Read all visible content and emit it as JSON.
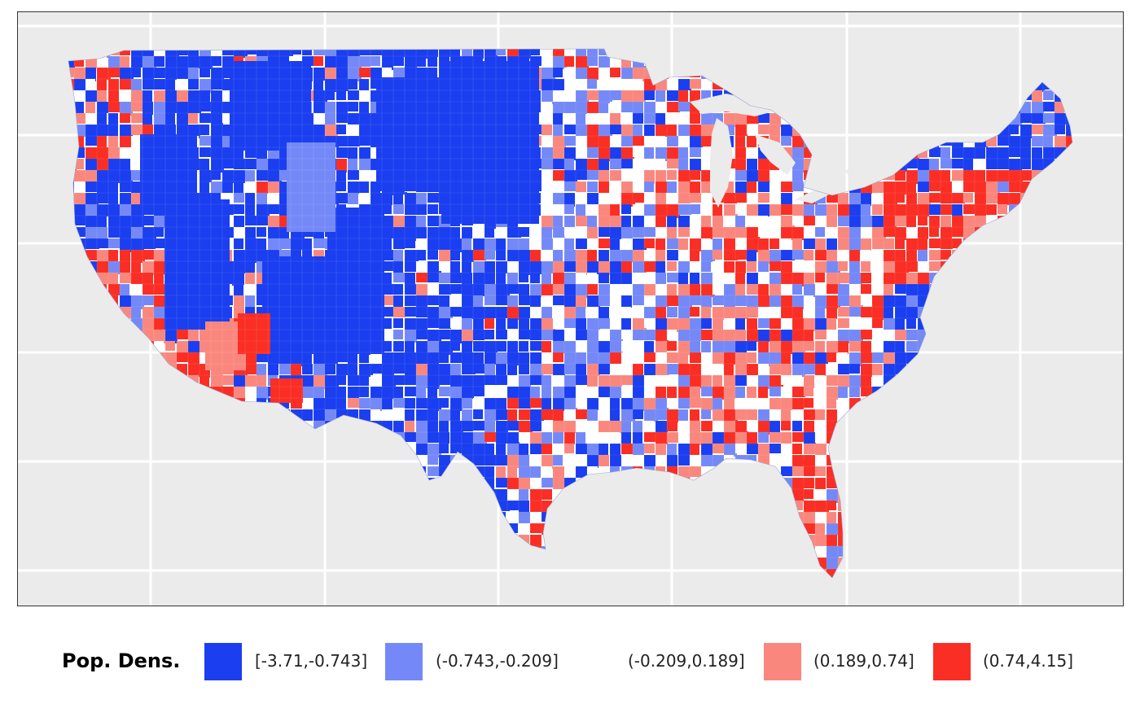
{
  "legend": {
    "title": "Pop. Dens.",
    "items": [
      {
        "label": "[-3.71,-0.743]",
        "color": "#1a3ef0"
      },
      {
        "label": "(-0.743,-0.209]",
        "color": "#7489f7"
      },
      {
        "label": "(-0.209,0.189]",
        "color": "#ffffff"
      },
      {
        "label": "(0.189,0.74]",
        "color": "#fa877e"
      },
      {
        "label": "(0.74,4.15]",
        "color": "#fa2e24"
      }
    ]
  },
  "map": {
    "region": "contiguous-us",
    "units": "counties",
    "panel_background": "#ebebeb",
    "gridline_color": "#ffffff",
    "grid": true
  }
}
